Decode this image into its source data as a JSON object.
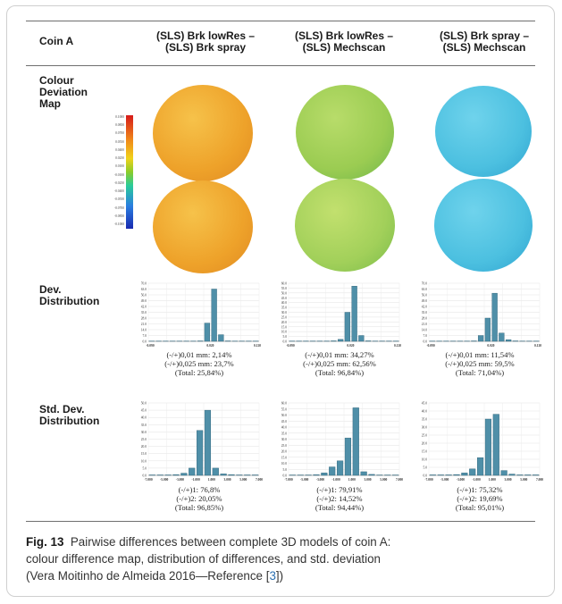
{
  "table": {
    "corner_label": "Coin A",
    "columns": [
      {
        "line1": "(SLS) Brk lowRes –",
        "line2": "(SLS) Brk spray"
      },
      {
        "line1": "(SLS) Brk lowRes –",
        "line2": "(SLS) Mechscan"
      },
      {
        "line1": "(SLS) Brk spray –",
        "line2": "(SLS) Mechscan"
      }
    ],
    "rows": [
      {
        "lines": [
          "Colour",
          "Deviation",
          "Map"
        ]
      },
      {
        "lines": [
          "Dev.",
          "Distribution"
        ]
      },
      {
        "lines": [
          "Std. Dev.",
          "Distribution"
        ]
      }
    ],
    "legend_ticks": [
      "0.1000",
      "0.0850",
      "0.0700",
      "0.0550",
      "0.0400",
      "0.0250",
      "0.0100",
      "-0.0100",
      "-0.0250",
      "-0.0400",
      "-0.0550",
      "-0.0700",
      "-0.0850",
      "-0.1000"
    ],
    "coin_colors": {
      "col1": "#f0a52c",
      "col2": "#a6d35a",
      "col3": "#4fc3e2"
    }
  },
  "chart_data": [
    {
      "type": "bar",
      "title": "",
      "xlabel": "",
      "ylabel": "",
      "x_ticks": [
        "-0.090",
        "0.020",
        "0.120"
      ],
      "y_ticks": [
        "0.0",
        "7.0",
        "14.0",
        "21.0",
        "28.0",
        "35.0",
        "42.0",
        "49.0",
        "56.0",
        "63.0",
        "70.0"
      ],
      "ylim": [
        0,
        70
      ],
      "values": [
        0.3,
        0.3,
        0.3,
        0.3,
        0.3,
        0.3,
        0.3,
        0.5,
        22,
        63,
        8,
        0.5,
        0.3,
        0.3,
        0.3,
        0.3
      ],
      "summary": [
        "(-/+)0,01 mm: 2,14%",
        "(-/+)0,025 mm: 23,7%",
        "(Total: 25,84%)"
      ]
    },
    {
      "type": "bar",
      "title": "",
      "xlabel": "",
      "ylabel": "",
      "x_ticks": [
        "-0.090",
        "0.020",
        "0.120"
      ],
      "y_ticks": [
        "0.0",
        "5.0",
        "10.0",
        "15.0",
        "20.0",
        "25.0",
        "30.0",
        "35.0",
        "40.0",
        "45.0",
        "50.0",
        "55.0",
        "60.0"
      ],
      "ylim": [
        0,
        60
      ],
      "values": [
        0.3,
        0.3,
        0.3,
        0.3,
        0.3,
        0.3,
        0.5,
        2,
        30,
        57,
        6,
        0.5,
        0.3,
        0.3,
        0.3,
        0.3
      ],
      "summary": [
        "(-/+)0,01 mm: 34,27%",
        "(-/+)0,025 mm: 62,56%",
        "(Total: 96,84%)"
      ]
    },
    {
      "type": "bar",
      "title": "",
      "xlabel": "",
      "ylabel": "",
      "x_ticks": [
        "-0.090",
        "0.020",
        "0.120"
      ],
      "y_ticks": [
        "0.0",
        "7.0",
        "14.0",
        "21.0",
        "28.0",
        "35.0",
        "42.0",
        "49.0",
        "56.0",
        "63.0",
        "70.0"
      ],
      "ylim": [
        0,
        70
      ],
      "values": [
        0.3,
        0.3,
        0.3,
        0.3,
        0.3,
        0.3,
        0.5,
        7,
        28,
        58,
        10,
        2,
        0.5,
        0.3,
        0.3,
        0.3
      ],
      "summary": [
        "(-/+)0,01 mm: 11,54%",
        "(-/+)0,025 mm: 59,5%",
        "(Total: 71,04%)"
      ]
    },
    {
      "type": "bar",
      "title": "",
      "xlabel": "",
      "ylabel": "",
      "x_ticks": [
        "-7.000",
        "-5.000",
        "-3.000",
        "-1.000",
        "1.000",
        "3.000",
        "5.000",
        "7.000"
      ],
      "y_ticks": [
        "0.0",
        "5.0",
        "10.0",
        "15.0",
        "20.0",
        "25.0",
        "30.0",
        "35.0",
        "40.0",
        "45.0",
        "50.0"
      ],
      "ylim": [
        0,
        50
      ],
      "values": [
        0.3,
        0.3,
        0.3,
        0.5,
        1.5,
        5,
        31,
        45,
        5,
        1,
        0.5,
        0.3,
        0.3,
        0.3
      ],
      "summary": [
        "(-/+)1: 76,8%",
        "(-/+)2: 20,05%",
        "(Total: 96,85%)"
      ]
    },
    {
      "type": "bar",
      "title": "",
      "xlabel": "",
      "ylabel": "",
      "x_ticks": [
        "-7.000",
        "-5.000",
        "-3.000",
        "-1.000",
        "1.000",
        "3.000",
        "5.000",
        "7.000"
      ],
      "y_ticks": [
        "0.0",
        "5.0",
        "10.0",
        "15.0",
        "20.0",
        "25.0",
        "30.0",
        "35.0",
        "40.0",
        "45.0",
        "50.0",
        "55.0",
        "60.0"
      ],
      "ylim": [
        0,
        60
      ],
      "values": [
        0.3,
        0.3,
        0.3,
        0.5,
        2,
        7,
        12,
        31,
        56,
        3,
        0.8,
        0.3,
        0.3,
        0.3
      ],
      "summary": [
        "(-/+)1: 79,91%",
        "(-/+)2: 14,52%",
        "(Total: 94,44%)"
      ]
    },
    {
      "type": "bar",
      "title": "",
      "xlabel": "",
      "ylabel": "",
      "x_ticks": [
        "-7.000",
        "-5.000",
        "-3.000",
        "-1.000",
        "1.000",
        "3.000",
        "5.000",
        "7.000"
      ],
      "y_ticks": [
        "0.0",
        "5.0",
        "10.0",
        "15.0",
        "20.0",
        "25.0",
        "30.0",
        "35.0",
        "40.0",
        "45.0"
      ],
      "ylim": [
        0,
        45
      ],
      "values": [
        0.3,
        0.3,
        0.3,
        0.5,
        1.5,
        4,
        11,
        35,
        38,
        3,
        0.8,
        0.3,
        0.3,
        0.3
      ],
      "summary": [
        "(-/+)1: 75,32%",
        "(-/+)2: 19,69%",
        "(Total: 95,01%)"
      ]
    }
  ],
  "caption": {
    "fig_label": "Fig. 13",
    "line1": "Pairwise differences between complete 3D models of coin A:",
    "line2": "colour difference map, distribution of differences, and std. deviation",
    "line3_pre": "(Vera Moitinho de Almeida 2016—Reference [",
    "ref": "3",
    "line3_post": "])"
  }
}
